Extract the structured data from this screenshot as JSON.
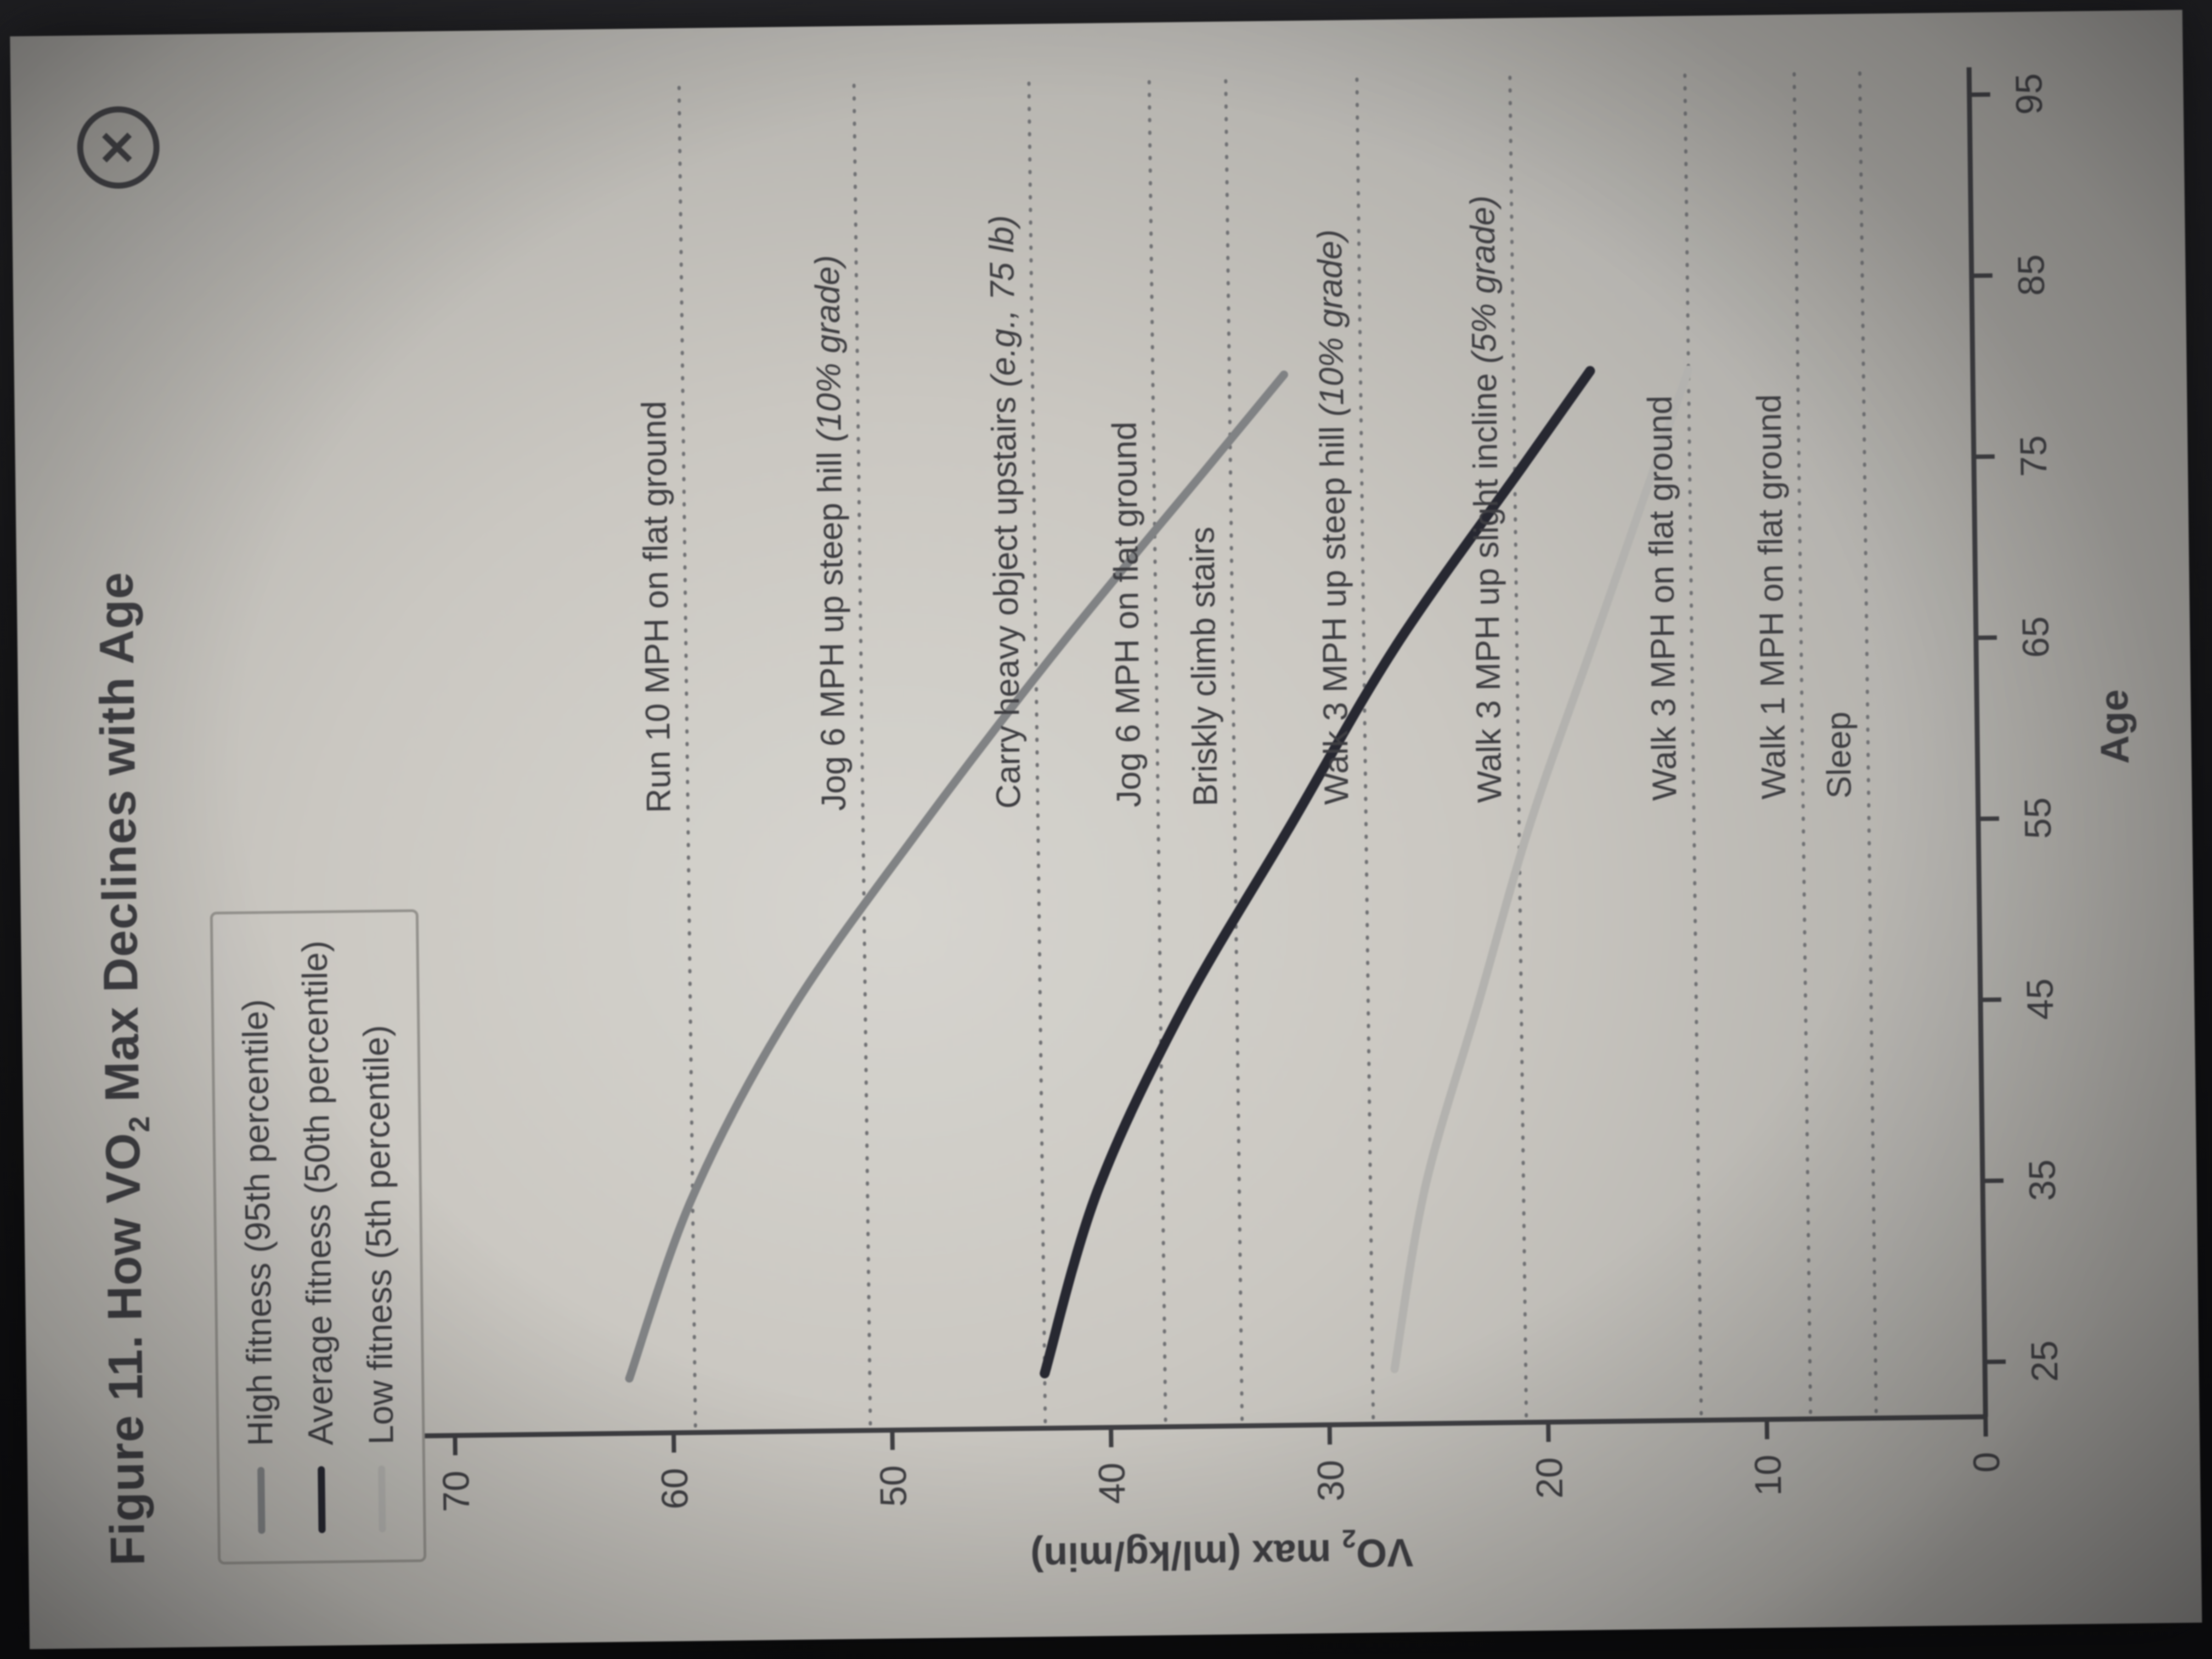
{
  "window": {
    "close_glyph": "✕"
  },
  "title": {
    "prefix": "Figure 11.",
    "pre": " How VO",
    "sub": "2",
    "post": " Max Declines with Age"
  },
  "legend": {
    "items": [
      {
        "label": "High fitness (95th percentile)",
        "color": "#808284"
      },
      {
        "label": "Average fitness (50th percentile)",
        "color": "#24252f"
      },
      {
        "label": "Low fitness (5th percentile)",
        "color": "#b5b4b0"
      }
    ]
  },
  "axes": {
    "x_title": "Age",
    "y_title_pre": "VO",
    "y_title_sub": "2",
    "y_title_post": " max (ml/kg/min)"
  },
  "chart_data": {
    "type": "line",
    "title": "Figure 11. How VO2 Max Declines with Age",
    "xlabel": "Age",
    "ylabel": "VO2 max (ml/kg/min)",
    "xlim": [
      20,
      100
    ],
    "ylim": [
      0,
      70
    ],
    "x_ticks": [
      25,
      35,
      45,
      55,
      65,
      75,
      85,
      95
    ],
    "y_ticks": [
      0,
      10,
      20,
      30,
      40,
      50,
      60,
      70
    ],
    "grid": false,
    "legend_position": "top-left",
    "series": [
      {
        "name": "High fitness (95th percentile)",
        "color": "#808284",
        "x": [
          25,
          35,
          45,
          55,
          65,
          75,
          80
        ],
        "values": [
          62,
          59,
          54.5,
          48.5,
          42,
          35,
          31.5
        ]
      },
      {
        "name": "Average fitness (50th percentile)",
        "color": "#24252f",
        "x": [
          25,
          35,
          45,
          55,
          65,
          75,
          80
        ],
        "values": [
          43,
          40.5,
          36.5,
          31.5,
          26.5,
          20.5,
          17.5
        ]
      },
      {
        "name": "Low fitness (5th percentile)",
        "color": "#b5b4b0",
        "x": [
          25,
          35,
          45,
          55,
          65,
          75,
          80
        ],
        "values": [
          27,
          25.5,
          23,
          20.5,
          17.5,
          14.5,
          13
        ]
      }
    ],
    "reference_lines": [
      {
        "label": "Run 10 MPH on flat ground",
        "italic": "",
        "value": 59
      },
      {
        "label": "Jog 6 MPH up steep hill ",
        "italic": "(10% grade)",
        "value": 51
      },
      {
        "label": "Carry heavy object upstairs ",
        "italic": "(e.g., 75 lb)",
        "value": 43
      },
      {
        "label": "Jog 6 MPH on flat ground",
        "italic": "",
        "value": 37.5
      },
      {
        "label": "Briskly climb stairs",
        "italic": "",
        "value": 34
      },
      {
        "label": "Walk 3 MPH up steep hill ",
        "italic": "(10% grade)",
        "value": 28
      },
      {
        "label": "Walk 3 MPH up slight incline ",
        "italic": "(5% grade)",
        "value": 21
      },
      {
        "label": "Walk 3 MPH on flat ground",
        "italic": "",
        "value": 13
      },
      {
        "label": "Walk 1 MPH on flat ground",
        "italic": "",
        "value": 8
      },
      {
        "label": "Sleep",
        "italic": "",
        "value": 5
      }
    ]
  }
}
